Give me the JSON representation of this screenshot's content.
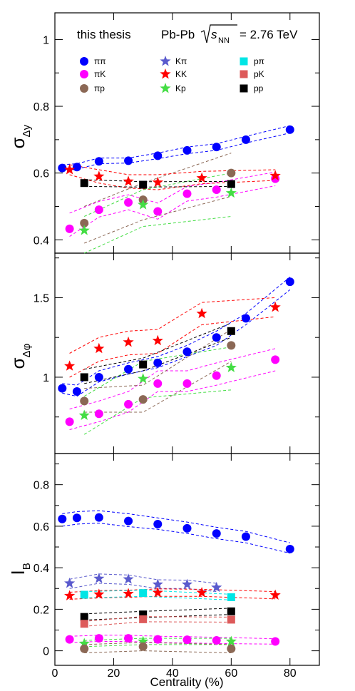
{
  "figure": {
    "label": "this thesis",
    "collision": "Pb-Pb",
    "energy_symbol": "s",
    "energy_subscript": "NN",
    "energy_value": "= 2.76 TeV"
  },
  "colors": {
    "pipi": "#0000ff",
    "piK": "#ff00ff",
    "pip": "#8b6855",
    "Kpi": "#5a5acd",
    "KK": "#ff0000",
    "Kp": "#44dd44",
    "ppi": "#00e5e5",
    "pK": "#dd5a5a",
    "pp": "#000000"
  },
  "chart_data": {
    "type": "scatter",
    "xlabel": "Centrality (%)",
    "xlim": [
      0,
      90
    ],
    "x_ticks": [
      0,
      20,
      40,
      60,
      80
    ],
    "legend": [
      {
        "key": "pipi",
        "label": "ππ",
        "marker": "circle"
      },
      {
        "key": "piK",
        "label": "πK",
        "marker": "circle"
      },
      {
        "key": "pip",
        "label": "πp",
        "marker": "circle"
      },
      {
        "key": "Kpi",
        "label": "Kπ",
        "marker": "star"
      },
      {
        "key": "KK",
        "label": "KK",
        "marker": "star"
      },
      {
        "key": "Kp",
        "label": "Kp",
        "marker": "star"
      },
      {
        "key": "ppi",
        "label": "pπ",
        "marker": "square"
      },
      {
        "key": "pK",
        "label": "pK",
        "marker": "square"
      },
      {
        "key": "pp",
        "label": "pp",
        "marker": "square"
      }
    ],
    "panels": [
      {
        "id": "sigma_dy",
        "ylabel": "σ",
        "ylabel_sub": "Δy",
        "ylim": [
          0.36,
          1.08
        ],
        "y_ticks": [
          0.4,
          0.6,
          0.8,
          1
        ],
        "y_tick_labels": [
          "0.4",
          "0.6",
          "0.8",
          "1"
        ],
        "series": [
          {
            "key": "pipi",
            "marker": "circle",
            "x": [
              2.5,
              7.5,
              15,
              25,
              35,
              45,
              55,
              65,
              80
            ],
            "y": [
              0.615,
              0.618,
              0.635,
              0.637,
              0.652,
              0.668,
              0.678,
              0.7,
              0.73
            ],
            "band_lo": [
              0.605,
              0.612,
              0.628,
              0.63,
              0.643,
              0.658,
              0.668,
              0.69,
              0.72
            ],
            "band_hi": [
              0.625,
              0.628,
              0.645,
              0.645,
              0.66,
              0.678,
              0.688,
              0.71,
              0.742
            ]
          },
          {
            "key": "piK",
            "marker": "circle",
            "x": [
              5,
              15,
              25,
              35,
              45,
              55,
              75
            ],
            "y": [
              0.433,
              0.49,
              0.512,
              0.485,
              0.538,
              0.55,
              0.583
            ],
            "band_lo": [
              0.41,
              0.468,
              0.49,
              0.462,
              0.516,
              0.528,
              0.562
            ],
            "band_hi": [
              0.48,
              0.515,
              0.535,
              0.51,
              0.56,
              0.572,
              0.603
            ]
          },
          {
            "key": "pip",
            "marker": "circle",
            "x": [
              10,
              30,
              60
            ],
            "y": [
              0.45,
              0.52,
              0.6
            ],
            "band_lo": [
              0.39,
              0.46,
              0.53
            ],
            "band_hi": [
              0.5,
              0.57,
              0.66
            ]
          },
          {
            "key": "KK",
            "marker": "star",
            "x": [
              5,
              15,
              25,
              35,
              50,
              75
            ],
            "y": [
              0.61,
              0.59,
              0.575,
              0.572,
              0.585,
              0.592
            ],
            "band_lo": [
              0.595,
              0.57,
              0.555,
              0.55,
              0.568,
              0.578
            ],
            "band_hi": [
              0.625,
              0.61,
              0.595,
              0.595,
              0.605,
              0.61
            ]
          },
          {
            "key": "Kp",
            "marker": "star",
            "x": [
              10,
              30,
              60
            ],
            "y": [
              0.428,
              0.505,
              0.54
            ],
            "band_lo": [
              0.36,
              0.44,
              0.47
            ],
            "band_hi": [
              0.47,
              0.55,
              0.6
            ]
          },
          {
            "key": "pp",
            "marker": "square",
            "x": [
              10,
              30,
              60
            ],
            "y": [
              0.57,
              0.565,
              0.567
            ],
            "band_lo": [
              0.56,
              0.558,
              0.56
            ],
            "band_hi": [
              0.58,
              0.574,
              0.575
            ]
          }
        ]
      },
      {
        "id": "sigma_dphi",
        "ylabel": "σ",
        "ylabel_sub": "Δφ",
        "ylim": [
          0.52,
          1.78
        ],
        "y_ticks": [
          1.0,
          1.5
        ],
        "y_tick_labels": [
          "1",
          "1.5"
        ],
        "series": [
          {
            "key": "pipi",
            "marker": "circle",
            "x": [
              2.5,
              7.5,
              15,
              25,
              35,
              45,
              55,
              65,
              80
            ],
            "y": [
              0.93,
              0.91,
              1.0,
              1.05,
              1.09,
              1.16,
              1.25,
              1.37,
              1.6
            ],
            "band_lo": [
              0.9,
              0.88,
              0.97,
              1.02,
              1.06,
              1.13,
              1.2,
              1.33,
              1.55
            ],
            "band_hi": [
              0.96,
              0.95,
              1.04,
              1.09,
              1.13,
              1.2,
              1.29,
              1.4,
              1.63
            ]
          },
          {
            "key": "piK",
            "marker": "circle",
            "x": [
              5,
              15,
              25,
              35,
              45,
              55,
              75
            ],
            "y": [
              0.72,
              0.77,
              0.83,
              0.96,
              0.96,
              1.01,
              1.11
            ],
            "band_lo": [
              0.67,
              0.72,
              0.78,
              0.91,
              0.91,
              0.95,
              1.04
            ],
            "band_hi": [
              0.8,
              0.85,
              0.91,
              1.04,
              1.04,
              1.09,
              1.18
            ]
          },
          {
            "key": "pip",
            "marker": "circle",
            "x": [
              10,
              30,
              60
            ],
            "y": [
              0.85,
              0.86,
              1.2
            ],
            "band_lo": [
              0.78,
              0.78,
              1.1
            ],
            "band_hi": [
              0.93,
              0.95,
              1.3
            ]
          },
          {
            "key": "KK",
            "marker": "star",
            "x": [
              5,
              15,
              25,
              35,
              50,
              75
            ],
            "y": [
              1.07,
              1.18,
              1.22,
              1.23,
              1.4,
              1.44
            ],
            "band_lo": [
              1.0,
              1.1,
              1.14,
              1.15,
              1.33,
              1.38
            ],
            "band_hi": [
              1.15,
              1.25,
              1.29,
              1.3,
              1.47,
              1.5
            ]
          },
          {
            "key": "Kp",
            "marker": "star",
            "x": [
              10,
              30,
              60
            ],
            "y": [
              0.76,
              0.99,
              1.06
            ],
            "band_lo": [
              0.64,
              0.87,
              0.92
            ],
            "band_hi": [
              0.88,
              1.1,
              1.19
            ]
          },
          {
            "key": "pp",
            "marker": "square",
            "x": [
              10,
              30,
              60
            ],
            "y": [
              1.0,
              1.08,
              1.29
            ],
            "band_lo": [
              0.96,
              1.04,
              1.25
            ],
            "band_hi": [
              1.05,
              1.12,
              1.34
            ]
          }
        ]
      },
      {
        "id": "I_B",
        "ylabel": "I",
        "ylabel_sub": "B",
        "ylim": [
          -0.07,
          0.95
        ],
        "y_ticks": [
          0,
          0.2,
          0.4,
          0.6,
          0.8
        ],
        "y_tick_labels": [
          "0",
          "0.2",
          "0.4",
          "0.6",
          "0.8"
        ],
        "series": [
          {
            "key": "pipi",
            "marker": "circle",
            "x": [
              2.5,
              7.5,
              15,
              25,
              35,
              45,
              55,
              65,
              80
            ],
            "y": [
              0.635,
              0.64,
              0.642,
              0.625,
              0.61,
              0.59,
              0.565,
              0.55,
              0.49
            ],
            "band_lo": [
              0.6,
              0.61,
              0.615,
              0.598,
              0.585,
              0.565,
              0.54,
              0.52,
              0.47
            ],
            "band_hi": [
              0.66,
              0.67,
              0.675,
              0.66,
              0.64,
              0.62,
              0.595,
              0.575,
              0.52
            ]
          },
          {
            "key": "Kpi",
            "marker": "star",
            "x": [
              5,
              15,
              25,
              35,
              45,
              55
            ],
            "y": [
              0.325,
              0.348,
              0.345,
              0.32,
              0.32,
              0.305
            ],
            "band_lo": [
              0.3,
              0.325,
              0.32,
              0.3,
              0.3,
              0.285
            ],
            "band_hi": [
              0.345,
              0.37,
              0.365,
              0.342,
              0.34,
              0.325
            ]
          },
          {
            "key": "KK",
            "marker": "star",
            "x": [
              5,
              15,
              25,
              35,
              50,
              75
            ],
            "y": [
              0.265,
              0.272,
              0.275,
              0.28,
              0.28,
              0.268
            ],
            "band_lo": [
              0.248,
              0.255,
              0.258,
              0.262,
              0.262,
              0.25
            ],
            "band_hi": [
              0.282,
              0.29,
              0.292,
              0.298,
              0.296,
              0.285
            ]
          },
          {
            "key": "ppi",
            "marker": "square",
            "x": [
              10,
              30,
              60
            ],
            "y": [
              0.27,
              0.278,
              0.258
            ],
            "band_lo": [
              0.255,
              0.262,
              0.245
            ],
            "band_hi": [
              0.285,
              0.292,
              0.272
            ]
          },
          {
            "key": "pp",
            "marker": "square",
            "x": [
              10,
              30,
              60
            ],
            "y": [
              0.163,
              0.175,
              0.19
            ],
            "band_lo": [
              0.148,
              0.16,
              0.175
            ],
            "band_hi": [
              0.178,
              0.19,
              0.205
            ]
          },
          {
            "key": "pK",
            "marker": "square",
            "x": [
              10,
              30,
              60
            ],
            "y": [
              0.13,
              0.152,
              0.15
            ],
            "band_lo": [
              0.118,
              0.14,
              0.138
            ],
            "band_hi": [
              0.142,
              0.165,
              0.162
            ]
          },
          {
            "key": "piK",
            "marker": "circle",
            "x": [
              5,
              15,
              25,
              35,
              45,
              55,
              75
            ],
            "y": [
              0.055,
              0.06,
              0.06,
              0.055,
              0.053,
              0.05,
              0.045
            ],
            "band_lo": [
              0.04,
              0.045,
              0.045,
              0.04,
              0.038,
              0.035,
              0.032
            ],
            "band_hi": [
              0.07,
              0.075,
              0.075,
              0.07,
              0.068,
              0.065,
              0.058
            ]
          },
          {
            "key": "Kp",
            "marker": "star",
            "x": [
              10,
              30,
              60
            ],
            "y": [
              0.035,
              0.045,
              0.045
            ],
            "band_lo": [
              0.02,
              0.03,
              0.03
            ],
            "band_hi": [
              0.05,
              0.06,
              0.06
            ]
          },
          {
            "key": "pip",
            "marker": "circle",
            "x": [
              10,
              30,
              60
            ],
            "y": [
              0.01,
              0.02,
              0.01
            ],
            "band_lo": [
              -0.01,
              0.0,
              -0.01
            ],
            "band_hi": [
              0.03,
              0.04,
              0.03
            ]
          }
        ]
      }
    ]
  }
}
